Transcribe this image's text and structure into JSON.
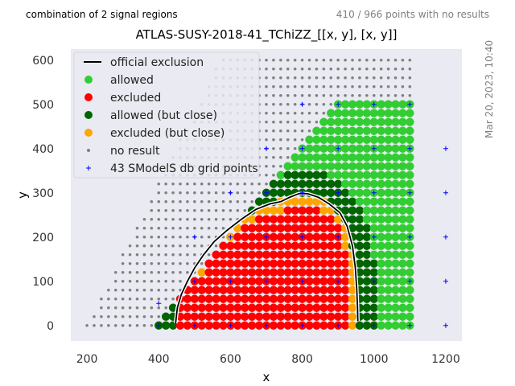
{
  "header": {
    "regions_note": "combination of 2 signal regions",
    "points_note": "410 / 966 points with no results"
  },
  "timestamp": "Mar 20, 2023, 10:40",
  "colors": {
    "plot_bg": "#EAEAF2",
    "allowed": "#32CD32",
    "excluded": "#FF0000",
    "allowed_close": "#006400",
    "excluded_close": "#FFA500",
    "no_result": "#808080",
    "grid_point": "#0000FF",
    "official_exclusion": "#000000"
  },
  "chart_data": {
    "type": "scatter",
    "title": "ATLAS-SUSY-2018-41_TChiZZ_[[x, y], [x, y]]",
    "xlabel": "x",
    "ylabel": "y",
    "xlim": [
      155,
      1245
    ],
    "ylim": [
      -35,
      625
    ],
    "xticks": [
      200,
      400,
      600,
      800,
      1000,
      1200
    ],
    "yticks": [
      0,
      100,
      200,
      300,
      400,
      500,
      600
    ],
    "grid": false,
    "legend_position": "top-left",
    "legend": [
      {
        "label": "official exclusion",
        "marker": "line",
        "color": "#000000"
      },
      {
        "label": "allowed",
        "marker": "circle",
        "color": "#32CD32"
      },
      {
        "label": "excluded",
        "marker": "circle",
        "color": "#FF0000"
      },
      {
        "label": "allowed (but close)",
        "marker": "circle",
        "color": "#006400"
      },
      {
        "label": "excluded (but close)",
        "marker": "circle",
        "color": "#FFA500"
      },
      {
        "label": "no result",
        "marker": "dot",
        "color": "#808080"
      },
      {
        "label": "43 SModelS db grid points",
        "marker": "plus",
        "color": "#0000FF"
      }
    ],
    "official_exclusion": [
      [
        447,
        5
      ],
      [
        452,
        40
      ],
      [
        463,
        70
      ],
      [
        480,
        100
      ],
      [
        500,
        130
      ],
      [
        525,
        160
      ],
      [
        555,
        190
      ],
      [
        590,
        215
      ],
      [
        630,
        240
      ],
      [
        670,
        262
      ],
      [
        710,
        275
      ],
      [
        740,
        280
      ],
      [
        765,
        290
      ],
      [
        790,
        298
      ],
      [
        815,
        298
      ],
      [
        845,
        290
      ],
      [
        875,
        275
      ],
      [
        905,
        255
      ],
      [
        925,
        225
      ],
      [
        940,
        180
      ],
      [
        948,
        130
      ],
      [
        952,
        80
      ],
      [
        954,
        40
      ],
      [
        955,
        10
      ]
    ],
    "sampling_grid": {
      "x_step": 20,
      "y_step": 20,
      "y_range": [
        0,
        600
      ],
      "no_result_left_edge": [
        [
          0,
          200
        ],
        [
          600,
          570
        ]
      ],
      "right_edge_x": 1100
    },
    "db_grid_points": [
      [
        400,
        0
      ],
      [
        500,
        0
      ],
      [
        600,
        0
      ],
      [
        700,
        0
      ],
      [
        800,
        0
      ],
      [
        900,
        0
      ],
      [
        1000,
        0
      ],
      [
        1100,
        0
      ],
      [
        1200,
        0
      ],
      [
        400,
        50
      ],
      [
        500,
        100
      ],
      [
        600,
        100
      ],
      [
        700,
        100
      ],
      [
        800,
        100
      ],
      [
        900,
        100
      ],
      [
        1000,
        100
      ],
      [
        1100,
        100
      ],
      [
        1200,
        100
      ],
      [
        500,
        200
      ],
      [
        600,
        200
      ],
      [
        700,
        200
      ],
      [
        800,
        200
      ],
      [
        900,
        200
      ],
      [
        1000,
        200
      ],
      [
        1100,
        200
      ],
      [
        1200,
        200
      ],
      [
        600,
        300
      ],
      [
        700,
        300
      ],
      [
        800,
        300
      ],
      [
        900,
        300
      ],
      [
        1000,
        300
      ],
      [
        1100,
        300
      ],
      [
        1200,
        300
      ],
      [
        700,
        400
      ],
      [
        800,
        400
      ],
      [
        900,
        400
      ],
      [
        1000,
        400
      ],
      [
        1100,
        400
      ],
      [
        1200,
        400
      ],
      [
        800,
        500
      ],
      [
        900,
        500
      ],
      [
        1000,
        500
      ],
      [
        1100,
        500
      ]
    ]
  }
}
